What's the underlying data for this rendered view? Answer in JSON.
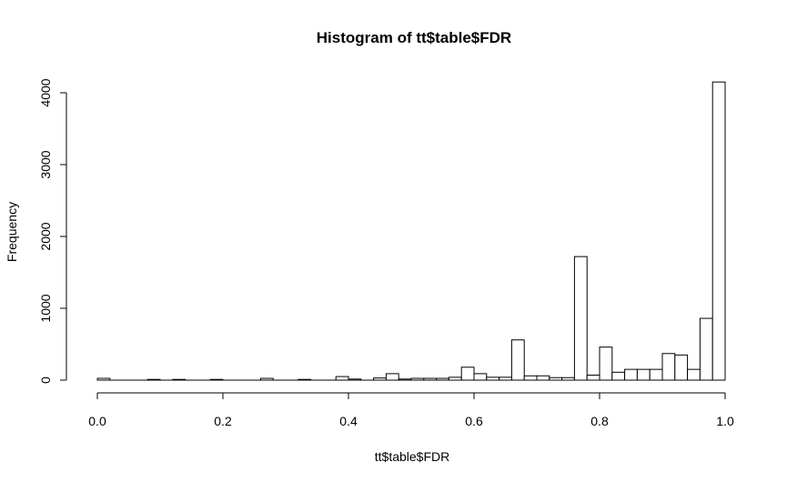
{
  "chart_data": {
    "type": "bar",
    "title": "Histogram of tt$table$FDR",
    "xlabel": "tt$table$FDR",
    "ylabel": "Frequency",
    "xlim": [
      0.0,
      1.0
    ],
    "ylim": [
      0,
      4150
    ],
    "bin_width": 0.02,
    "x_ticks": [
      0.0,
      0.2,
      0.4,
      0.6,
      0.8,
      1.0
    ],
    "x_tick_labels": [
      "0.0",
      "0.2",
      "0.4",
      "0.6",
      "0.8",
      "1.0"
    ],
    "y_ticks": [
      0,
      1000,
      2000,
      3000,
      4000
    ],
    "y_tick_labels": [
      "0",
      "1000",
      "2000",
      "3000",
      "4000"
    ],
    "bins_start": [
      0.0,
      0.02,
      0.04,
      0.06,
      0.08,
      0.1,
      0.12,
      0.14,
      0.16,
      0.18,
      0.2,
      0.22,
      0.24,
      0.26,
      0.28,
      0.3,
      0.32,
      0.34,
      0.36,
      0.38,
      0.4,
      0.42,
      0.44,
      0.46,
      0.48,
      0.5,
      0.52,
      0.54,
      0.56,
      0.58,
      0.6,
      0.62,
      0.64,
      0.66,
      0.68,
      0.7,
      0.72,
      0.74,
      0.76,
      0.78,
      0.8,
      0.82,
      0.84,
      0.86,
      0.88,
      0.9,
      0.92,
      0.94,
      0.96,
      0.98
    ],
    "values": [
      25,
      0,
      0,
      0,
      10,
      0,
      10,
      0,
      0,
      10,
      0,
      0,
      0,
      25,
      0,
      0,
      10,
      0,
      0,
      50,
      15,
      0,
      30,
      90,
      15,
      25,
      25,
      25,
      40,
      180,
      90,
      40,
      40,
      560,
      60,
      60,
      35,
      35,
      1720,
      70,
      460,
      110,
      150,
      150,
      150,
      370,
      350,
      150,
      860,
      4150
    ],
    "grid": false,
    "legend": "none",
    "colors": {
      "bar_fill": "#ffffff",
      "bar_stroke": "#000000"
    }
  }
}
